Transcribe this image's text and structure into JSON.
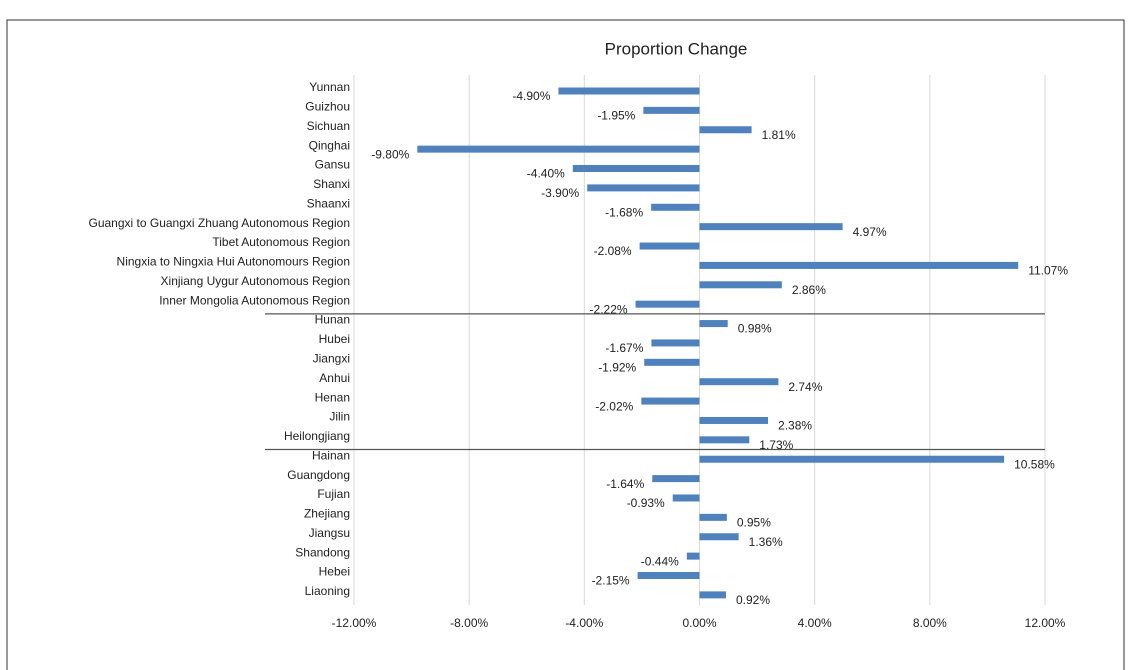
{
  "chart_data": {
    "type": "bar",
    "orientation": "horizontal",
    "title": "Proportion Change",
    "categories": [
      "Yunnan",
      "Guizhou",
      "Sichuan",
      "Qinghai",
      "Gansu",
      "Shanxi",
      "Shaanxi",
      "Guangxi to Guangxi Zhuang Autonomous Region",
      "Tibet Autonomous Region",
      "Ningxia to Ningxia Hui Autonomours Region",
      "Xinjiang Uygur Autonomous Region",
      "Inner Mongolia Autonomous Region",
      "Hunan",
      "Hubei",
      "Jiangxi",
      "Anhui",
      "Henan",
      "Jilin",
      "Heilongjiang",
      "Hainan",
      "Guangdong",
      "Fujian",
      "Zhejiang",
      "Jiangsu",
      "Shandong",
      "Hebei",
      "Liaoning"
    ],
    "values": [
      -4.9,
      -1.95,
      1.81,
      -9.8,
      -4.4,
      -3.9,
      -1.68,
      4.97,
      -2.08,
      11.07,
      2.86,
      -2.22,
      0.98,
      -1.67,
      -1.92,
      2.74,
      -2.02,
      2.38,
      1.73,
      10.58,
      -1.64,
      -0.93,
      0.95,
      1.36,
      -0.44,
      -2.15,
      0.92
    ],
    "value_labels": [
      "-4.90%",
      "-1.95%",
      "1.81%",
      "-9.80%",
      "-4.40%",
      "-3.90%",
      "-1.68%",
      "4.97%",
      "-2.08%",
      "11.07%",
      "2.86%",
      "-2.22%",
      "0.98%",
      "-1.67%",
      "-1.92%",
      "2.74%",
      "-2.02%",
      "2.38%",
      "1.73%",
      "10.58%",
      "-1.64%",
      "-0.93%",
      "0.95%",
      "1.36%",
      "-0.44%",
      "-2.15%",
      "0.92%"
    ],
    "color": "#4f81bd",
    "xlim": [
      -12,
      12
    ],
    "xticks": [
      {
        "value": -12,
        "label": "-12.00%"
      },
      {
        "value": -8,
        "label": "-8.00%"
      },
      {
        "value": -4,
        "label": "-4.00%"
      },
      {
        "value": 0,
        "label": "0.00%"
      },
      {
        "value": 4,
        "label": "4.00%"
      },
      {
        "value": 8,
        "label": "8.00%"
      },
      {
        "value": 12,
        "label": "12.00%"
      }
    ],
    "grid": true
  }
}
